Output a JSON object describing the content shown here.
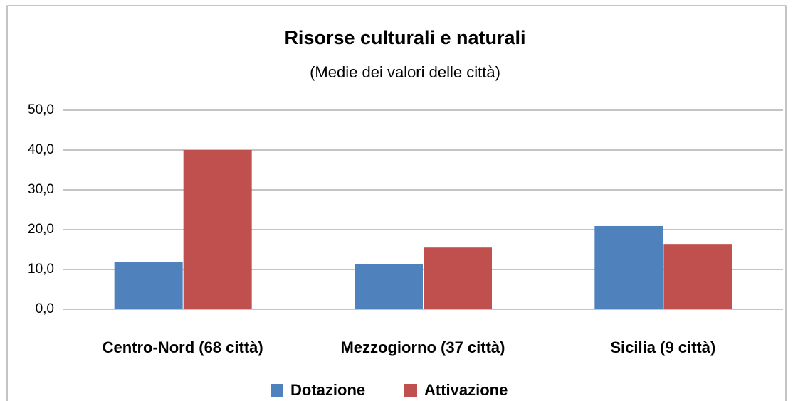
{
  "chart_data": {
    "type": "bar",
    "title": "Risorse  culturali e naturali",
    "subtitle": "(Medie dei valori delle città)",
    "categories": [
      "Centro-Nord (68 città)",
      "Mezzogiorno (37 città)",
      "Sicilia (9 città)"
    ],
    "series": [
      {
        "name": "Dotazione",
        "color": "#4f81bd",
        "values": [
          11.8,
          11.4,
          20.9
        ]
      },
      {
        "name": "Attivazione",
        "color": "#c0504d",
        "values": [
          40.0,
          15.5,
          16.4
        ]
      }
    ],
    "ylim": [
      0,
      50
    ],
    "yticks": [
      {
        "value": 0,
        "label": "0,0"
      },
      {
        "value": 10,
        "label": "10,0"
      },
      {
        "value": 20,
        "label": "20,0"
      },
      {
        "value": 30,
        "label": "30,0"
      },
      {
        "value": 40,
        "label": "40,0"
      },
      {
        "value": 50,
        "label": "50,0"
      }
    ],
    "grid": true,
    "legend": "bottom"
  }
}
